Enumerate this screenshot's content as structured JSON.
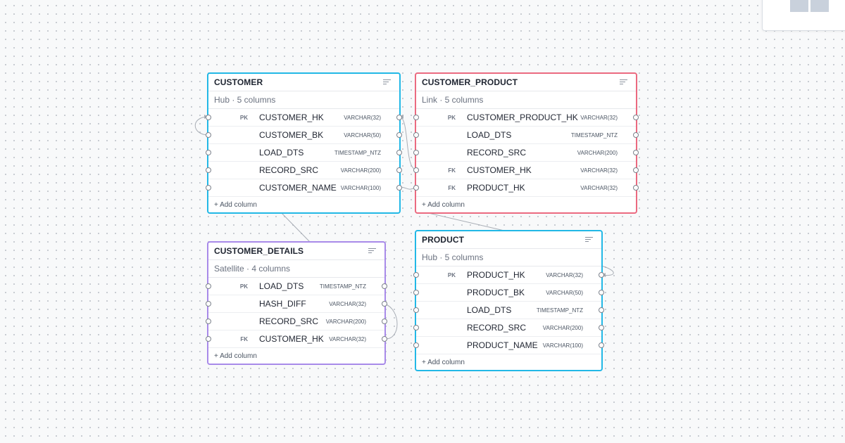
{
  "tables": {
    "customer": {
      "name": "CUSTOMER",
      "subtitle": "Hub · 5 columns",
      "add_label": "+ Add column",
      "columns": [
        {
          "key": "PK",
          "name": "CUSTOMER_HK",
          "type": "VARCHAR(32)"
        },
        {
          "key": "",
          "name": "CUSTOMER_BK",
          "type": "VARCHAR(50)"
        },
        {
          "key": "",
          "name": "LOAD_DTS",
          "type": "TIMESTAMP_NTZ"
        },
        {
          "key": "",
          "name": "RECORD_SRC",
          "type": "VARCHAR(200)"
        },
        {
          "key": "",
          "name": "CUSTOMER_NAME",
          "type": "VARCHAR(100)"
        }
      ]
    },
    "customer_product": {
      "name": "CUSTOMER_PRODUCT",
      "subtitle": "Link · 5 columns",
      "add_label": "+ Add column",
      "columns": [
        {
          "key": "PK",
          "name": "CUSTOMER_PRODUCT_HK",
          "type": "VARCHAR(32)"
        },
        {
          "key": "",
          "name": "LOAD_DTS",
          "type": "TIMESTAMP_NTZ"
        },
        {
          "key": "",
          "name": "RECORD_SRC",
          "type": "VARCHAR(200)"
        },
        {
          "key": "FK",
          "name": "CUSTOMER_HK",
          "type": "VARCHAR(32)"
        },
        {
          "key": "FK",
          "name": "PRODUCT_HK",
          "type": "VARCHAR(32)"
        }
      ]
    },
    "customer_details": {
      "name": "CUSTOMER_DETAILS",
      "subtitle": "Satellite · 4 columns",
      "add_label": "+ Add column",
      "columns": [
        {
          "key": "PK",
          "name": "LOAD_DTS",
          "type": "TIMESTAMP_NTZ"
        },
        {
          "key": "",
          "name": "HASH_DIFF",
          "type": "VARCHAR(32)"
        },
        {
          "key": "",
          "name": "RECORD_SRC",
          "type": "VARCHAR(200)"
        },
        {
          "key": "FK",
          "name": "CUSTOMER_HK",
          "type": "VARCHAR(32)"
        }
      ]
    },
    "product": {
      "name": "PRODUCT",
      "subtitle": "Hub · 5 columns",
      "add_label": "+ Add column",
      "columns": [
        {
          "key": "PK",
          "name": "PRODUCT_HK",
          "type": "VARCHAR(32)"
        },
        {
          "key": "",
          "name": "PRODUCT_BK",
          "type": "VARCHAR(50)"
        },
        {
          "key": "",
          "name": "LOAD_DTS",
          "type": "TIMESTAMP_NTZ"
        },
        {
          "key": "",
          "name": "RECORD_SRC",
          "type": "VARCHAR(200)"
        },
        {
          "key": "",
          "name": "PRODUCT_NAME",
          "type": "VARCHAR(100)"
        }
      ]
    }
  },
  "colors": {
    "hub": "#22b8e6",
    "link": "#eb6a80",
    "satellite": "#a88ae9",
    "edge": "#a9aeb6"
  },
  "icons": {
    "table_menu": "filter-lines-icon",
    "port": "connection-port-icon"
  }
}
